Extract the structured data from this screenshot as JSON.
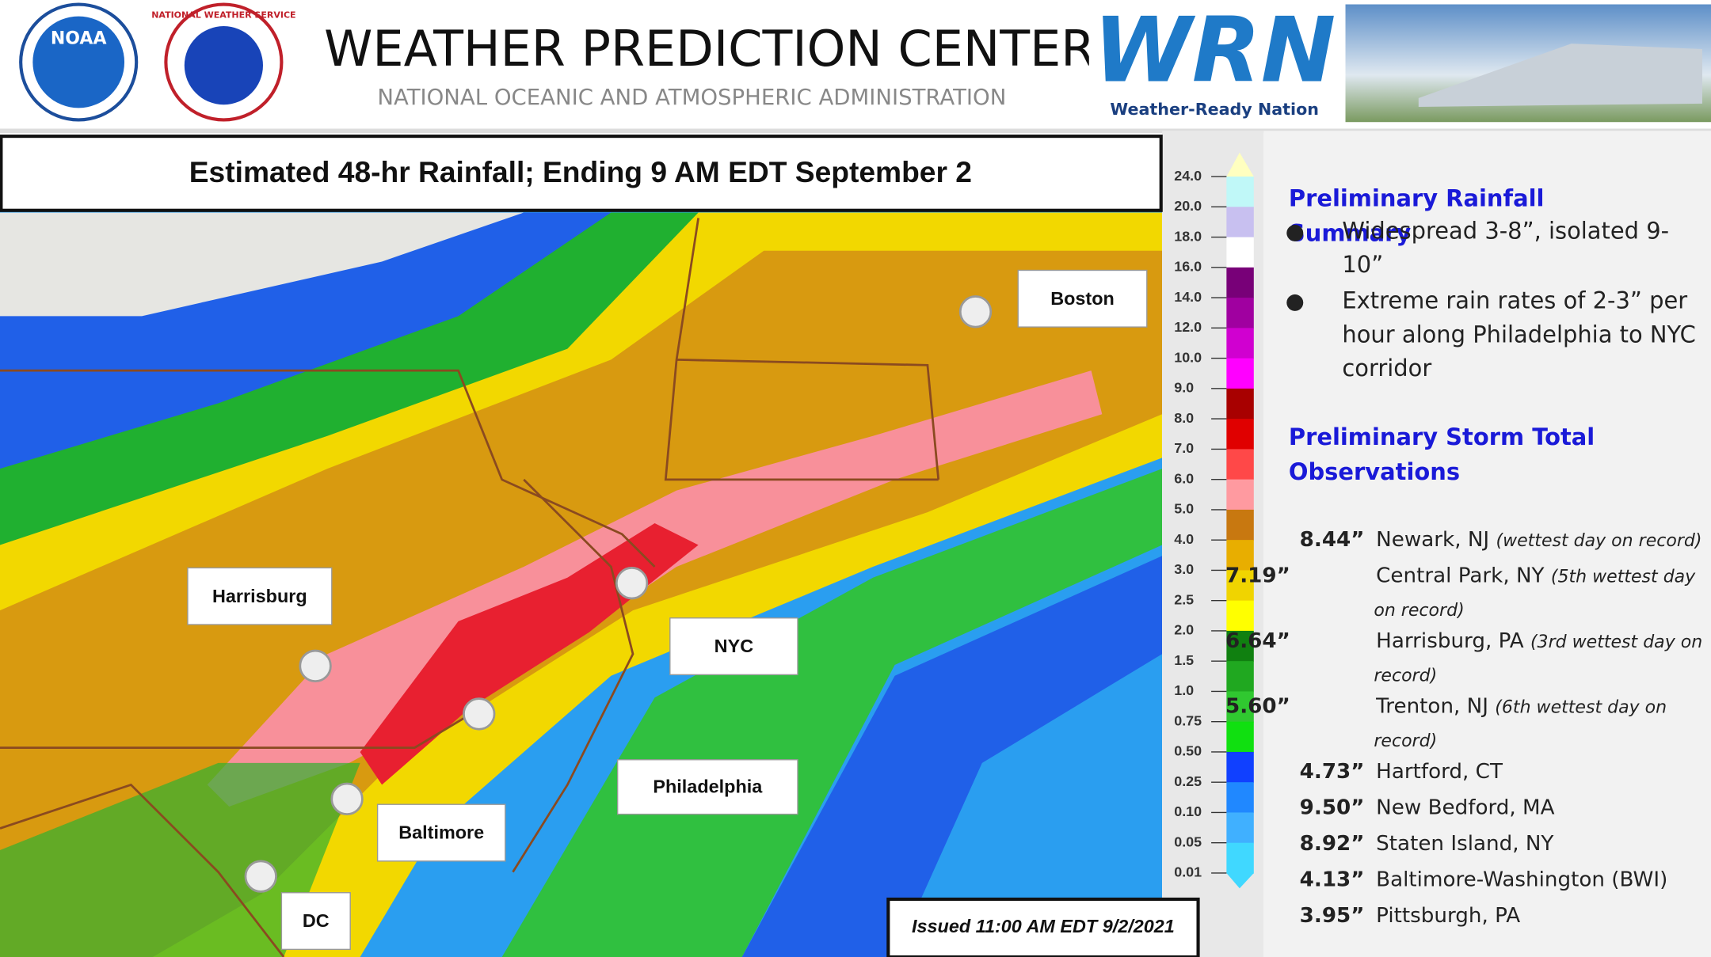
{
  "header": {
    "title": "WEATHER PREDICTION CENTER",
    "subtitle": "NATIONAL OCEANIC AND ATMOSPHERIC ADMINISTRATION",
    "noaa_logo": "NOAA",
    "nws_logo": "NATIONAL WEATHER SERVICE",
    "wrn_logo": "WRN",
    "wrn_caption": "Weather-Ready Nation"
  },
  "map": {
    "title": "Estimated 48-hr Rainfall; Ending 9 AM EDT September 2",
    "issued": "Issued 11:00 AM EDT 9/2/2021",
    "cities": [
      "Boston",
      "Harrisburg",
      "NYC",
      "Philadelphia",
      "Baltimore",
      "DC"
    ],
    "legend_ticks": [
      "24.0",
      "20.0",
      "18.0",
      "16.0",
      "14.0",
      "12.0",
      "10.0",
      "9.0",
      "8.0",
      "7.0",
      "6.0",
      "5.0",
      "4.0",
      "3.0",
      "2.5",
      "2.0",
      "1.5",
      "1.0",
      "0.75",
      "0.50",
      "0.25",
      "0.10",
      "0.05",
      "0.01"
    ]
  },
  "summary": {
    "heading": "Preliminary Rainfall Summary",
    "bullets": [
      "Widespread 3-8”, isolated 9-10”",
      "Extreme rain rates of 2-3” per hour along Philadelphia to NYC corridor"
    ]
  },
  "observations": {
    "heading": "Preliminary Storm Total Observations",
    "items": [
      {
        "amount": "8.44”",
        "place": "Newark, NJ",
        "note": "(wettest day on record)"
      },
      {
        "amount": "7.19”",
        "place": "Central Park, NY",
        "note": "(5th wettest day on record)"
      },
      {
        "amount": "6.64”",
        "place": "Harrisburg, PA",
        "note": "(3rd wettest day on record)"
      },
      {
        "amount": "5.60”",
        "place": "Trenton, NJ",
        "note": "(6th wettest day on record)"
      },
      {
        "amount": "4.73”",
        "place": "Hartford, CT"
      },
      {
        "amount": "9.50”",
        "place": "New Bedford, MA"
      },
      {
        "amount": "8.92”",
        "place": "Staten Island, NY"
      },
      {
        "amount": "4.13”",
        "place": "Baltimore-Washington (BWI)"
      },
      {
        "amount": "3.95”",
        "place": "Pittsburgh, PA"
      }
    ]
  }
}
